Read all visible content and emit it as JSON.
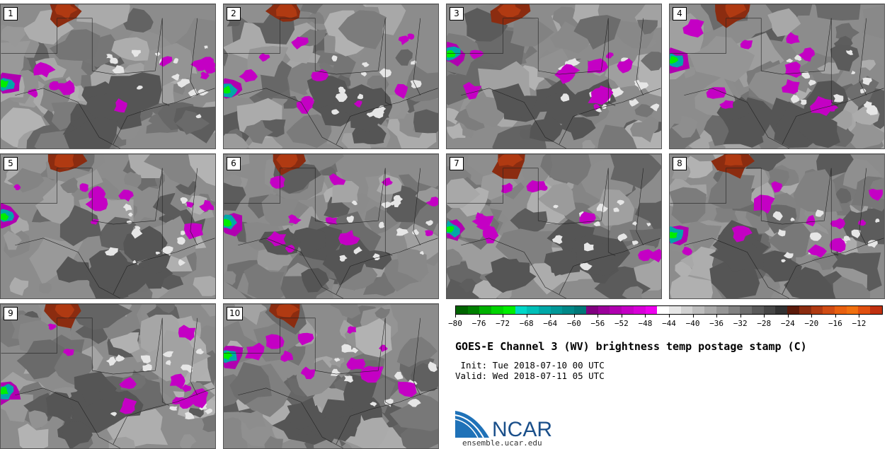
{
  "stamps": [
    {
      "label": "1"
    },
    {
      "label": "2"
    },
    {
      "label": "3"
    },
    {
      "label": "4"
    },
    {
      "label": "5"
    },
    {
      "label": "6"
    },
    {
      "label": "7"
    },
    {
      "label": "8"
    },
    {
      "label": "9"
    },
    {
      "label": "10"
    }
  ],
  "colorbar": {
    "colors": [
      "#006400",
      "#008000",
      "#00b000",
      "#00d400",
      "#00ee00",
      "#00d8c8",
      "#00c0b8",
      "#00a8a8",
      "#009898",
      "#008888",
      "#007878",
      "#800080",
      "#9a009a",
      "#b000b0",
      "#c400c4",
      "#d800d8",
      "#ee00ee",
      "#ffffff",
      "#e6e6e6",
      "#d2d2d2",
      "#bebebe",
      "#aaaaaa",
      "#969696",
      "#828282",
      "#6e6e6e",
      "#5a5a5a",
      "#464646",
      "#323232",
      "#5a1a0a",
      "#8b2c10",
      "#b03a12",
      "#d04c14",
      "#e86010",
      "#f07010",
      "#e05010",
      "#c03010"
    ],
    "tick_labels": [
      "−80",
      "−76",
      "−72",
      "−68",
      "−64",
      "−60",
      "−56",
      "−52",
      "−48",
      "−44",
      "−40",
      "−36",
      "−32",
      "−28",
      "−24",
      "−20",
      "−16",
      "−12"
    ]
  },
  "title": "GOES-E Channel 3 (WV) brightness temp postage stamp (C)",
  "init_line": " Init: Tue 2018-07-10 00 UTC",
  "valid_line": "Valid: Wed 2018-07-11 05 UTC",
  "logo": {
    "text": "NCAR",
    "url": "ensemble.ucar.edu"
  }
}
